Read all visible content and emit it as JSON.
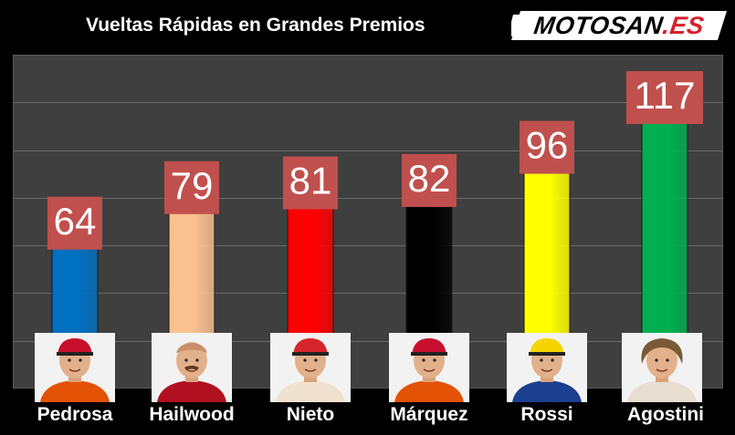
{
  "title": "Vueltas Rápidas en Grandes Premios",
  "logo": {
    "main": "MOTOSAN",
    "accent": ".ES"
  },
  "colors": {
    "background": "#000000",
    "plot_area": "#3f3f3f",
    "label_box": "#c0504d",
    "label_text": "#ffffff",
    "logo_red": "#d8202a"
  },
  "chart_data": {
    "type": "bar",
    "title": "Vueltas Rápidas en Grandes Premios",
    "xlabel": "",
    "ylabel": "",
    "categories": [
      "Pedrosa",
      "Hailwood",
      "Nieto",
      "Márquez",
      "Rossi",
      "Agostini"
    ],
    "values": [
      64,
      79,
      81,
      82,
      96,
      117
    ],
    "bar_colors": [
      "#0070c0",
      "#fac090",
      "#ff0000",
      "#000000",
      "#ffff00",
      "#00b050"
    ],
    "ylim": [
      0,
      117
    ],
    "grid": true,
    "legend": "none"
  },
  "portraits": [
    {
      "name": "Pedrosa",
      "icon": "rider-portrait-red-cap-icon",
      "accent": "#c8102e",
      "suit": "#e35205"
    },
    {
      "name": "Hailwood",
      "icon": "rider-portrait-bald-icon",
      "accent": "#d9a27b",
      "suit": "#b01020"
    },
    {
      "name": "Nieto",
      "icon": "rider-portrait-cap-icon",
      "accent": "#d6262b",
      "suit": "#f0e2cf"
    },
    {
      "name": "Márquez",
      "icon": "rider-portrait-red-cap-icon",
      "accent": "#c8102e",
      "suit": "#e35205"
    },
    {
      "name": "Rossi",
      "icon": "rider-portrait-yellow-cap-icon",
      "accent": "#f6d400",
      "suit": "#1d3f8f"
    },
    {
      "name": "Agostini",
      "icon": "rider-portrait-curly-hair-icon",
      "accent": "#7a5a35",
      "suit": "#e7ddd1"
    }
  ]
}
